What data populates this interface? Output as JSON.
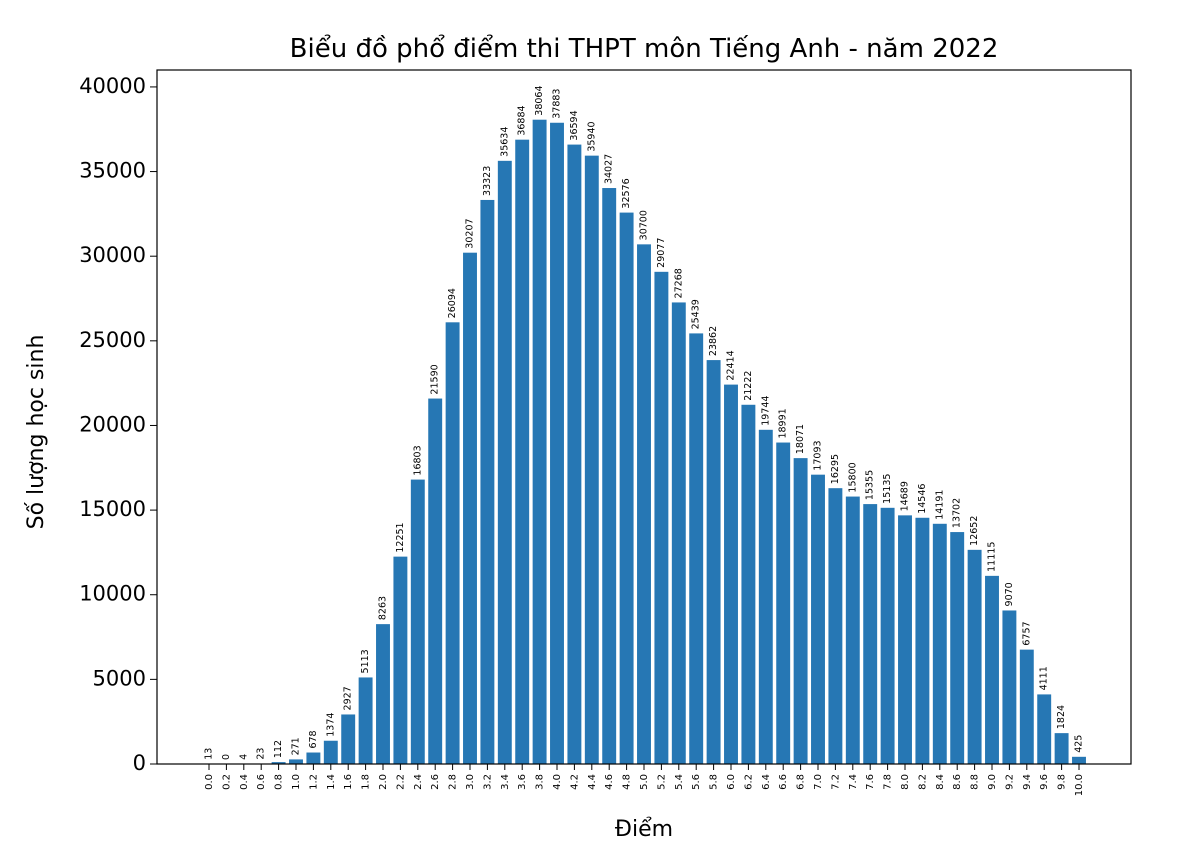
{
  "chart_data": {
    "type": "bar",
    "title": "Biểu đồ phổ điểm thi THPT môn Tiếng Anh - năm 2022",
    "xlabel": "Điểm",
    "ylabel": "Số lượng học sinh",
    "categories": [
      "0.0",
      "0.2",
      "0.4",
      "0.6",
      "0.8",
      "1.0",
      "1.2",
      "1.4",
      "1.6",
      "1.8",
      "2.0",
      "2.2",
      "2.4",
      "2.6",
      "2.8",
      "3.0",
      "3.2",
      "3.4",
      "3.6",
      "3.8",
      "4.0",
      "4.2",
      "4.4",
      "4.6",
      "4.8",
      "5.0",
      "5.2",
      "5.4",
      "5.6",
      "5.8",
      "6.0",
      "6.2",
      "6.4",
      "6.6",
      "6.8",
      "7.0",
      "7.2",
      "7.4",
      "7.6",
      "7.8",
      "8.0",
      "8.2",
      "8.4",
      "8.6",
      "8.8",
      "9.0",
      "9.2",
      "9.4",
      "9.6",
      "9.8",
      "10.0"
    ],
    "values": [
      13,
      0,
      4,
      23,
      112,
      271,
      678,
      1374,
      2927,
      5113,
      8263,
      12251,
      16803,
      21590,
      26094,
      30207,
      33323,
      35634,
      36884,
      38064,
      37883,
      36594,
      35940,
      34027,
      32576,
      30700,
      29077,
      27268,
      25439,
      23862,
      22414,
      21222,
      19744,
      18991,
      18071,
      17093,
      16295,
      15800,
      15355,
      15135,
      14689,
      14546,
      14191,
      13702,
      12652,
      11115,
      9070,
      6757,
      4111,
      1824,
      425
    ],
    "ylim": [
      0,
      41000
    ],
    "yticks": [
      0,
      5000,
      10000,
      15000,
      20000,
      25000,
      30000,
      35000,
      40000
    ],
    "bar_color": "#2677b4",
    "grid": false
  }
}
